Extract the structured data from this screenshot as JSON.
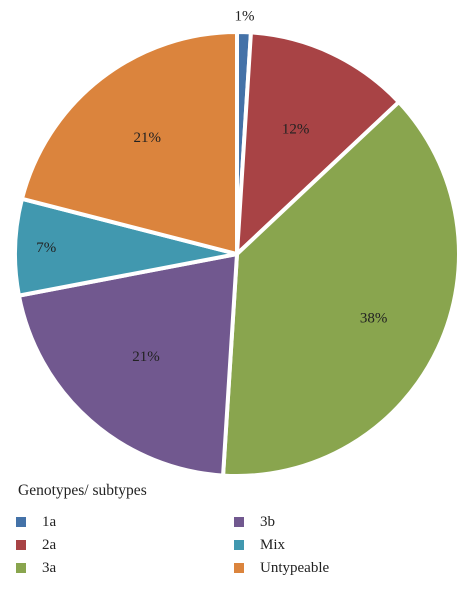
{
  "chart_data": {
    "type": "pie",
    "title": "",
    "legend_title": "Genotypes/ subtypes",
    "legend_position": "bottom",
    "slices": [
      {
        "name": "1a",
        "value": 1,
        "label": "1%",
        "color": "#4472a8"
      },
      {
        "name": "2a",
        "value": 12,
        "label": "12%",
        "color": "#a84345"
      },
      {
        "name": "3a",
        "value": 38,
        "label": "38%",
        "color": "#89a54e"
      },
      {
        "name": "3b",
        "value": 21,
        "label": "21%",
        "color": "#71588f"
      },
      {
        "name": "Mix",
        "value": 7,
        "label": "7%",
        "color": "#4198af"
      },
      {
        "name": "Untypeable",
        "value": 21,
        "label": "21%",
        "color": "#db843d"
      }
    ]
  }
}
